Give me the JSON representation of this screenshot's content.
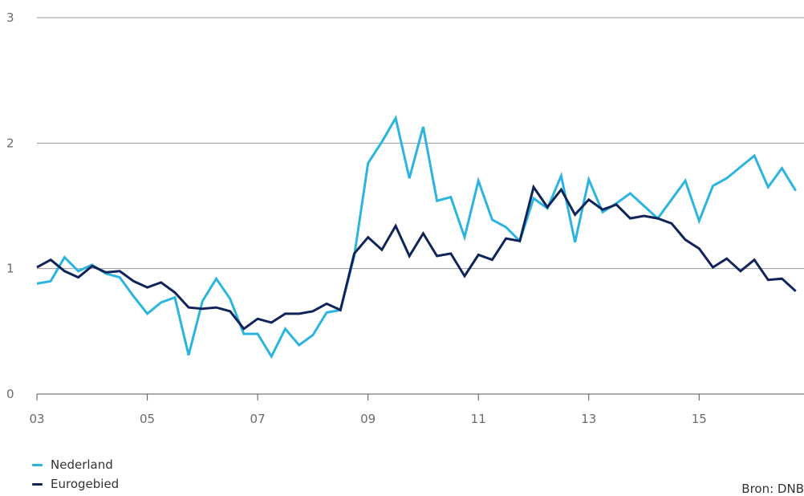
{
  "chart_data": {
    "type": "line",
    "title": "",
    "xlabel": "",
    "ylabel": "",
    "ylim": [
      0,
      3
    ],
    "xlim": [
      2003,
      2016.9
    ],
    "yticks": [
      "0",
      "1",
      "2",
      "3"
    ],
    "xticks": [
      {
        "value": 2003,
        "label": "03"
      },
      {
        "value": 2005,
        "label": "05"
      },
      {
        "value": 2007,
        "label": "07"
      },
      {
        "value": 2009,
        "label": "09"
      },
      {
        "value": 2011,
        "label": "11"
      },
      {
        "value": 2013,
        "label": "13"
      },
      {
        "value": 2015,
        "label": "15"
      }
    ],
    "grid": "horizontal",
    "legend_position": "bottom-left",
    "x": [
      2003.0,
      2003.25,
      2003.5,
      2003.75,
      2004.0,
      2004.25,
      2004.5,
      2004.75,
      2005.0,
      2005.25,
      2005.5,
      2005.75,
      2006.0,
      2006.25,
      2006.5,
      2006.75,
      2007.0,
      2007.25,
      2007.5,
      2007.75,
      2008.0,
      2008.25,
      2008.5,
      2008.75,
      2009.0,
      2009.25,
      2009.5,
      2009.75,
      2010.0,
      2010.25,
      2010.5,
      2010.75,
      2011.0,
      2011.25,
      2011.5,
      2011.75,
      2012.0,
      2012.25,
      2012.5,
      2012.75,
      2013.0,
      2013.25,
      2013.5,
      2013.75,
      2014.0,
      2014.25,
      2014.5,
      2014.75,
      2015.0,
      2015.25,
      2015.5,
      2015.75,
      2016.0,
      2016.25,
      2016.5,
      2016.75
    ],
    "series": [
      {
        "name": "Nederland",
        "color": "#2cb4e0",
        "values": [
          0.88,
          0.9,
          1.09,
          0.98,
          1.03,
          0.96,
          0.93,
          0.78,
          0.64,
          0.73,
          0.77,
          0.31,
          0.74,
          0.92,
          0.76,
          0.48,
          0.48,
          0.3,
          0.52,
          0.39,
          0.47,
          0.65,
          0.67,
          1.1,
          1.84,
          2.01,
          2.2,
          1.72,
          2.13,
          1.54,
          1.57,
          1.25,
          1.7,
          1.39,
          1.33,
          1.22,
          1.56,
          1.48,
          1.74,
          1.21,
          1.71,
          1.45,
          1.52,
          1.6,
          1.5,
          1.4,
          1.55,
          1.7,
          1.38,
          1.66,
          1.72,
          1.81,
          1.9,
          1.65,
          1.8,
          1.62
        ]
      },
      {
        "name": "Eurogebied",
        "color": "#10245a",
        "values": [
          1.01,
          1.07,
          0.98,
          0.93,
          1.02,
          0.97,
          0.98,
          0.9,
          0.85,
          0.89,
          0.81,
          0.69,
          0.68,
          0.69,
          0.66,
          0.52,
          0.6,
          0.57,
          0.64,
          0.64,
          0.66,
          0.72,
          0.67,
          1.12,
          1.25,
          1.15,
          1.34,
          1.1,
          1.28,
          1.1,
          1.12,
          0.94,
          1.11,
          1.07,
          1.24,
          1.22,
          1.65,
          1.49,
          1.63,
          1.43,
          1.55,
          1.47,
          1.51,
          1.4,
          1.42,
          1.4,
          1.36,
          1.23,
          1.16,
          1.01,
          1.08,
          0.98,
          1.07,
          0.91,
          0.92,
          0.82
        ]
      }
    ]
  },
  "legend": {
    "items": [
      {
        "label": "Nederland",
        "color": "#2cb4e0"
      },
      {
        "label": "Eurogebied",
        "color": "#10245a"
      }
    ]
  },
  "source": "Bron: DNB"
}
